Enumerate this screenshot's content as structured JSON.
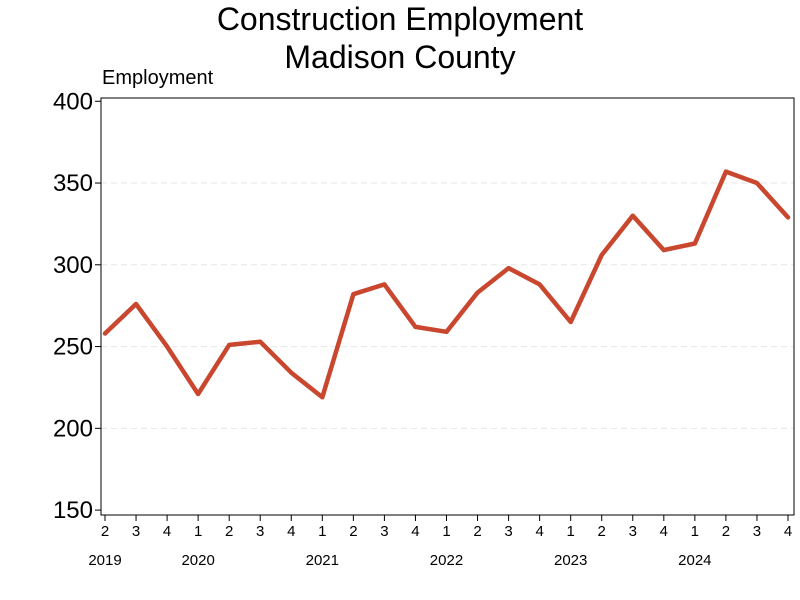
{
  "chart_data": {
    "type": "line",
    "title": "Construction Employment",
    "subtitle": "Madison County",
    "ylabel": "Employment",
    "xlabel": "",
    "ylim": [
      147,
      402
    ],
    "yticks": [
      150,
      200,
      250,
      300,
      350,
      400
    ],
    "grid": "horizontal dashed",
    "series": [
      {
        "color": "#c9472f",
        "values": [
          258,
          276,
          250,
          221,
          251,
          253,
          234,
          219,
          282,
          288,
          262,
          259,
          283,
          298,
          288,
          265,
          306,
          330,
          309,
          313,
          357,
          350,
          329
        ]
      }
    ],
    "x_quarters": [
      "2",
      "3",
      "4",
      "1",
      "2",
      "3",
      "4",
      "1",
      "2",
      "3",
      "4",
      "1",
      "2",
      "3",
      "4",
      "1",
      "2",
      "3",
      "4",
      "1",
      "2",
      "3",
      "4"
    ],
    "x_years": [
      {
        "label": "2019",
        "index": 0
      },
      {
        "label": "2020",
        "index": 3
      },
      {
        "label": "2021",
        "index": 7
      },
      {
        "label": "2022",
        "index": 11
      },
      {
        "label": "2023",
        "index": 15
      },
      {
        "label": "2024",
        "index": 19
      }
    ]
  }
}
